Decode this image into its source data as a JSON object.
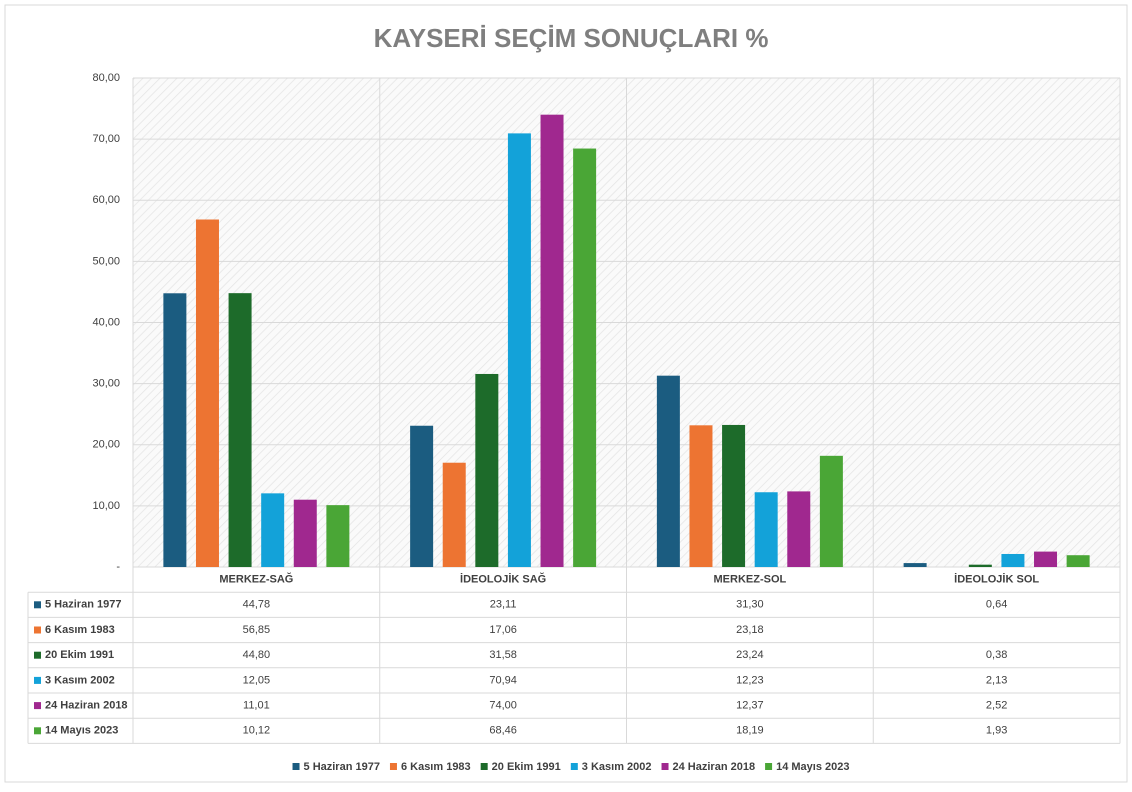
{
  "chart_data": {
    "type": "bar",
    "title": "KAYSERİ SEÇİM SONUÇLARI %",
    "categories": [
      "MERKEZ-SAĞ",
      "İDEOLOJİK SAĞ",
      "MERKEZ-SOL",
      "İDEOLOJİK SOL"
    ],
    "series": [
      {
        "name": "5 Haziran 1977",
        "color": "#1b5c80",
        "values": [
          44.78,
          23.11,
          31.3,
          0.64
        ],
        "value_labels": [
          "44,78",
          "23,11",
          "31,30",
          "0,64"
        ]
      },
      {
        "name": "6 Kasım 1983",
        "color": "#ed7432",
        "values": [
          56.85,
          17.06,
          23.18,
          null
        ],
        "value_labels": [
          "56,85",
          "17,06",
          "23,18",
          null
        ]
      },
      {
        "name": "20 Ekim 1991",
        "color": "#1d6b2a",
        "values": [
          44.8,
          31.58,
          23.24,
          0.38
        ],
        "value_labels": [
          "44,80",
          "31,58",
          "23,24",
          "0,38"
        ]
      },
      {
        "name": "3 Kasım 2002",
        "color": "#13a2d9",
        "values": [
          12.05,
          70.94,
          12.23,
          2.13
        ],
        "value_labels": [
          "12,05",
          "70,94",
          "12,23",
          "2,13"
        ]
      },
      {
        "name": "24 Haziran 2018",
        "color": "#a0288f",
        "values": [
          11.01,
          74.0,
          12.37,
          2.52
        ],
        "value_labels": [
          "11,01",
          "74,00",
          "12,37",
          "2,52"
        ]
      },
      {
        "name": "14 Mayıs 2023",
        "color": "#4aa636",
        "values": [
          10.12,
          68.46,
          18.19,
          1.93
        ],
        "value_labels": [
          "10,12",
          "68,46",
          "18,19",
          "1,93"
        ]
      }
    ],
    "ylim": [
      0,
      80
    ],
    "yticks": [
      {
        "value": 0,
        "label": "-"
      },
      {
        "value": 10,
        "label": "10,00"
      },
      {
        "value": 20,
        "label": "20,00"
      },
      {
        "value": 30,
        "label": "30,00"
      },
      {
        "value": 40,
        "label": "40,00"
      },
      {
        "value": 50,
        "label": "50,00"
      },
      {
        "value": 60,
        "label": "60,00"
      },
      {
        "value": 70,
        "label": "70,00"
      },
      {
        "value": 80,
        "label": "80,00"
      }
    ],
    "grid": true
  }
}
